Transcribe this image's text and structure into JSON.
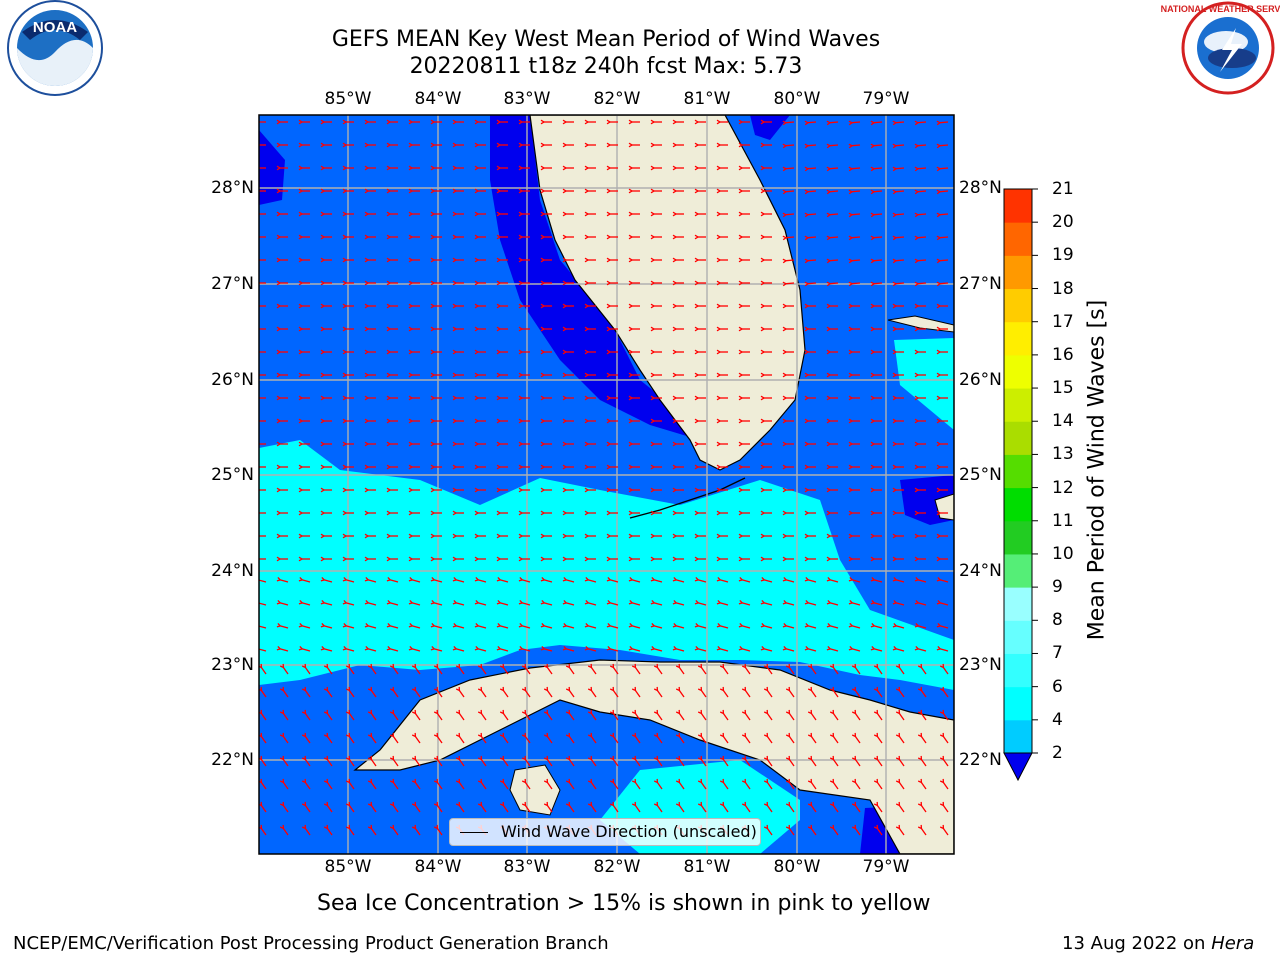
{
  "title_line1": "GEFS MEAN Key West Mean Period of Wind Waves",
  "title_line2": "20220811 t18z 240h fcst   Max: 5.73",
  "logos": {
    "left": "NOAA",
    "right": "NATIONAL WEATHER SERVICE"
  },
  "longitude_labels": [
    "85°W",
    "84°W",
    "83°W",
    "82°W",
    "81°W",
    "80°W",
    "79°W"
  ],
  "latitude_labels": [
    "28°N",
    "27°N",
    "26°N",
    "25°N",
    "24°N",
    "23°N",
    "22°N"
  ],
  "legend_label": "Wind Wave Direction (unscaled)",
  "colorbar": {
    "label": "Mean Period of Wind Waves [s]",
    "ticks": [
      "2",
      "4",
      "6",
      "7",
      "8",
      "9",
      "10",
      "11",
      "12",
      "13",
      "14",
      "15",
      "16",
      "17",
      "18",
      "19",
      "20",
      "21"
    ],
    "colors": [
      "#0066ff",
      "#00ccff",
      "#00ffff",
      "#33ffff",
      "#66ffff",
      "#99ffff",
      "#55ee77",
      "#22cc22",
      "#00dd00",
      "#55dd00",
      "#aadd00",
      "#ccee00",
      "#eeff00",
      "#ffee00",
      "#ffcc00",
      "#ff9900",
      "#ff6600",
      "#ff3300",
      "#ff0000"
    ]
  },
  "sea_ice_note": "Sea Ice Concentration > 15% is shown in pink to yellow",
  "footer_left": "NCEP/EMC/Verification Post Processing Product Generation Branch",
  "footer_right_date": "13 Aug 2022 on",
  "footer_right_host": "Hera"
}
